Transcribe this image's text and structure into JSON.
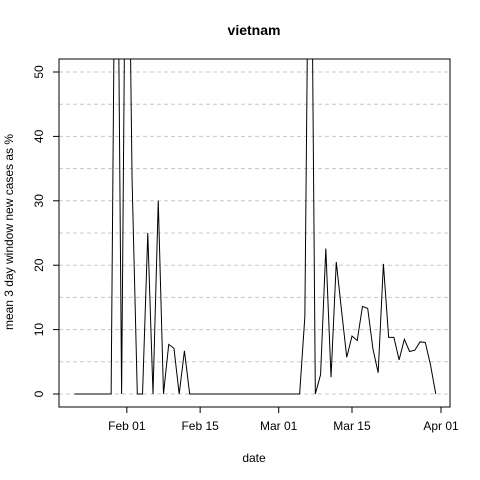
{
  "chart_data": {
    "type": "line",
    "title": "vietnam",
    "xlabel": "date",
    "ylabel": "mean  3  day window new cases as %",
    "x_ticks": [
      "Feb 01",
      "Feb 15",
      "Mar 01",
      "Mar 15",
      "Apr 01"
    ],
    "y_ticks": [
      "0",
      "10",
      "20",
      "30",
      "40",
      "50"
    ],
    "xlim": [
      "2020-01-20",
      "2020-04-01"
    ],
    "ylim": [
      0,
      52
    ],
    "grid": "dashed",
    "series": [
      {
        "color": "#000000",
        "x": [
          "2020-01-22",
          "2020-01-23",
          "2020-01-24",
          "2020-01-25",
          "2020-01-26",
          "2020-01-27",
          "2020-01-28",
          "2020-01-29",
          "2020-01-30",
          "2020-01-31",
          "2020-02-01",
          "2020-02-02",
          "2020-02-03",
          "2020-02-04",
          "2020-02-05",
          "2020-02-06",
          "2020-02-07",
          "2020-02-08",
          "2020-02-09",
          "2020-02-10",
          "2020-02-11",
          "2020-02-12",
          "2020-02-13",
          "2020-02-14",
          "2020-02-15",
          "2020-02-16",
          "2020-02-17",
          "2020-02-18",
          "2020-02-19",
          "2020-02-20",
          "2020-02-21",
          "2020-02-22",
          "2020-02-23",
          "2020-02-24",
          "2020-02-25",
          "2020-02-26",
          "2020-02-27",
          "2020-02-28",
          "2020-02-29",
          "2020-03-01",
          "2020-03-02",
          "2020-03-03",
          "2020-03-04",
          "2020-03-05",
          "2020-03-06",
          "2020-03-07",
          "2020-03-08",
          "2020-03-09",
          "2020-03-10",
          "2020-03-11",
          "2020-03-12",
          "2020-03-13",
          "2020-03-14",
          "2020-03-15",
          "2020-03-16",
          "2020-03-17",
          "2020-03-18",
          "2020-03-19",
          "2020-03-20",
          "2020-03-21",
          "2020-03-22",
          "2020-03-23",
          "2020-03-24",
          "2020-03-25",
          "2020-03-26",
          "2020-03-27",
          "2020-03-28",
          "2020-03-29",
          "2020-03-30",
          "2020-03-31"
        ],
        "y": [
          0,
          0,
          0,
          0,
          0,
          0,
          0,
          0,
          100,
          0,
          100,
          33.3,
          0,
          0,
          25,
          0,
          30,
          0,
          7.7,
          7.1,
          0,
          6.7,
          0,
          0,
          0,
          0,
          0,
          0,
          0,
          0,
          0,
          0,
          0,
          0,
          0,
          0,
          0,
          0,
          0,
          0,
          0,
          0,
          0,
          0,
          12,
          100,
          0,
          3,
          22.6,
          2.6,
          20.5,
          13,
          5.7,
          9,
          8.3,
          13.6,
          13.3,
          7,
          3.3,
          20.2,
          8.8,
          8.8,
          5.3,
          8.5,
          6.6,
          6.8,
          8.1,
          8,
          4.5,
          0
        ]
      }
    ]
  }
}
